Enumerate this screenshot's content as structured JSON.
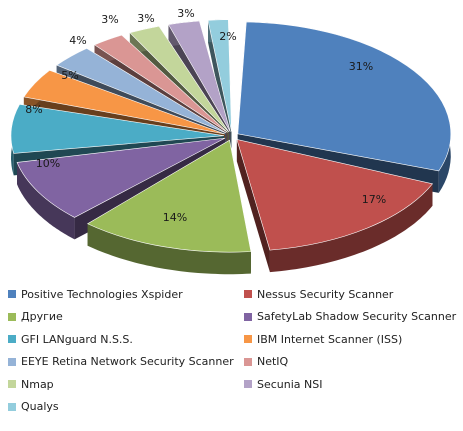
{
  "chart_data": {
    "type": "pie",
    "variant": "exploded-3d",
    "title": "",
    "legend_position": "bottom",
    "slices": [
      {
        "label": "Positive Technologies Xspider",
        "value": 31,
        "value_label": "31%",
        "color": "#4F81BD"
      },
      {
        "label": "Nessus Security Scanner",
        "value": 17,
        "value_label": "17%",
        "color": "#C0504D"
      },
      {
        "label": "Другие",
        "value": 14,
        "value_label": "14%",
        "color": "#9BBB59"
      },
      {
        "label": "SafetyLab Shadow Security Scanner",
        "value": 10,
        "value_label": "10%",
        "color": "#8064A2"
      },
      {
        "label": "GFI LANguard N.S.S.",
        "value": 8,
        "value_label": "8%",
        "color": "#4BACC6"
      },
      {
        "label": "IBM Internet Scanner (ISS)",
        "value": 5,
        "value_label": "5%",
        "color": "#F79646"
      },
      {
        "label": "EEYE Retina Network Security Scanner",
        "value": 4,
        "value_label": "4%",
        "color": "#95B3D7"
      },
      {
        "label": "NetIQ",
        "value": 3,
        "value_label": "3%",
        "color": "#DA9694"
      },
      {
        "label": "Nmap",
        "value": 3,
        "value_label": "3%",
        "color": "#C3D69B"
      },
      {
        "label": "Secunia NSI",
        "value": 3,
        "value_label": "3%",
        "color": "#B3A2C7"
      },
      {
        "label": "Qualys",
        "value": 2,
        "value_label": "2%",
        "color": "#93CDDD"
      }
    ]
  }
}
